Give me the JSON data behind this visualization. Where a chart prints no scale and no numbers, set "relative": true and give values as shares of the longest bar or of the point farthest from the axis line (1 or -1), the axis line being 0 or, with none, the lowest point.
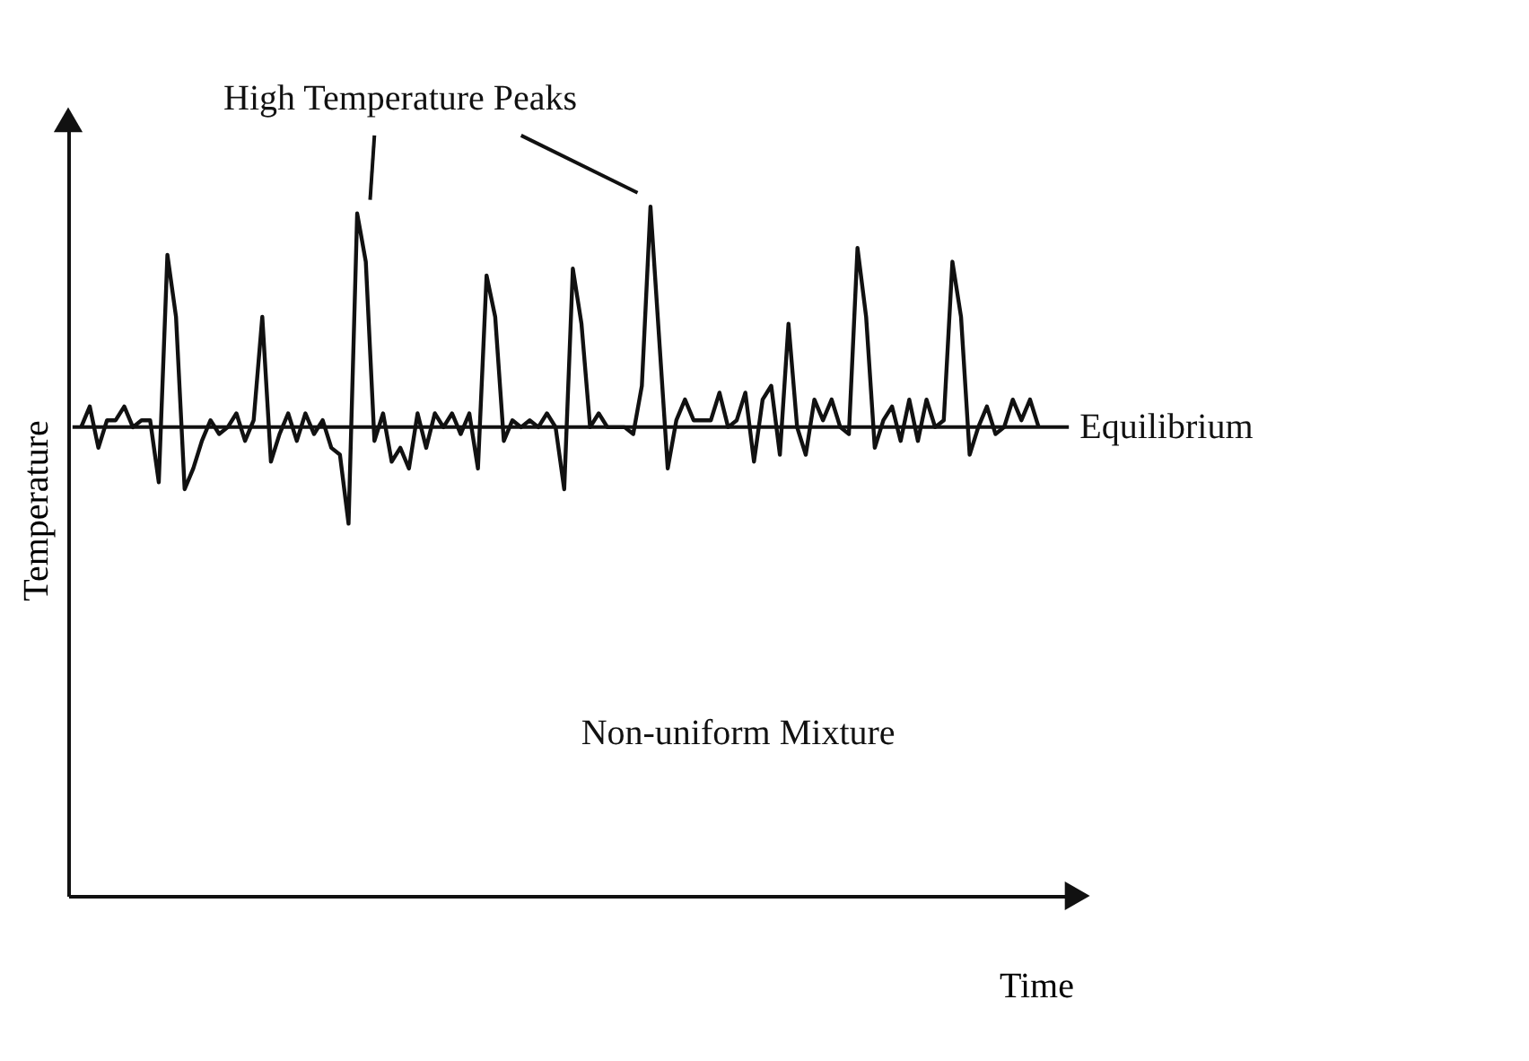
{
  "chart_data": {
    "type": "line",
    "relative": true,
    "xlabel": "Time",
    "ylabel": "Temperature",
    "categories": [
      null,
      null,
      null,
      null,
      null,
      null,
      null,
      null,
      null,
      null,
      null,
      null,
      null,
      null,
      null,
      null,
      null,
      null,
      null,
      null,
      null,
      null,
      null,
      null,
      null,
      null,
      null,
      null,
      null,
      null,
      null,
      null,
      null,
      null,
      null,
      null,
      null,
      null,
      null,
      null,
      null,
      null,
      null,
      null,
      null,
      null,
      null,
      null,
      null,
      null,
      null,
      null,
      null,
      null,
      null,
      null,
      null,
      null,
      null,
      null,
      null,
      null,
      null,
      null,
      null,
      null,
      null,
      null,
      null,
      null,
      null,
      null,
      null,
      null,
      null,
      null,
      null,
      null,
      null,
      null,
      null,
      null,
      null,
      null,
      null,
      null,
      null,
      null,
      null,
      null,
      null,
      null,
      null,
      null,
      null,
      null,
      null,
      null,
      null,
      null,
      null,
      null,
      null,
      null,
      null,
      null,
      null,
      null,
      null,
      null,
      null,
      null
    ],
    "series": [
      {
        "color": "#111111",
        "values": [
          0.68,
          0.71,
          0.65,
          0.69,
          0.69,
          0.71,
          0.68,
          0.69,
          0.69,
          0.6,
          0.93,
          0.84,
          0.59,
          0.62,
          0.66,
          0.69,
          0.67,
          0.68,
          0.7,
          0.66,
          0.69,
          0.84,
          0.63,
          0.67,
          0.7,
          0.66,
          0.7,
          0.67,
          0.69,
          0.65,
          0.64,
          0.54,
          0.99,
          0.92,
          0.66,
          0.7,
          0.63,
          0.65,
          0.62,
          0.7,
          0.65,
          0.7,
          0.68,
          0.7,
          0.67,
          0.7,
          0.62,
          0.9,
          0.84,
          0.66,
          0.69,
          0.68,
          0.69,
          0.68,
          0.7,
          0.68,
          0.59,
          0.91,
          0.83,
          0.68,
          0.7,
          0.68,
          0.68,
          0.68,
          0.67,
          0.74,
          1.0,
          0.81,
          0.62,
          0.69,
          0.72,
          0.69,
          0.69,
          0.69,
          0.73,
          0.68,
          0.69,
          0.73,
          0.63,
          0.72,
          0.74,
          0.64,
          0.83,
          0.68,
          0.64,
          0.72,
          0.69,
          0.72,
          0.68,
          0.67,
          0.94,
          0.84,
          0.65,
          0.69,
          0.71,
          0.66,
          0.72,
          0.66,
          0.72,
          0.68,
          0.69,
          0.92,
          0.84,
          0.64,
          0.68,
          0.71,
          0.67,
          0.68,
          0.72,
          0.69,
          0.72,
          0.68
        ]
      }
    ],
    "ref_lines": [
      {
        "axis": "y",
        "value": 0.68,
        "label": "Equilibrium",
        "color": "#111111"
      }
    ],
    "annotations": [
      "High Temperature Peaks",
      "Non-uniform Mixture"
    ],
    "grid": false,
    "marker": "none",
    "line_style": "solid"
  }
}
